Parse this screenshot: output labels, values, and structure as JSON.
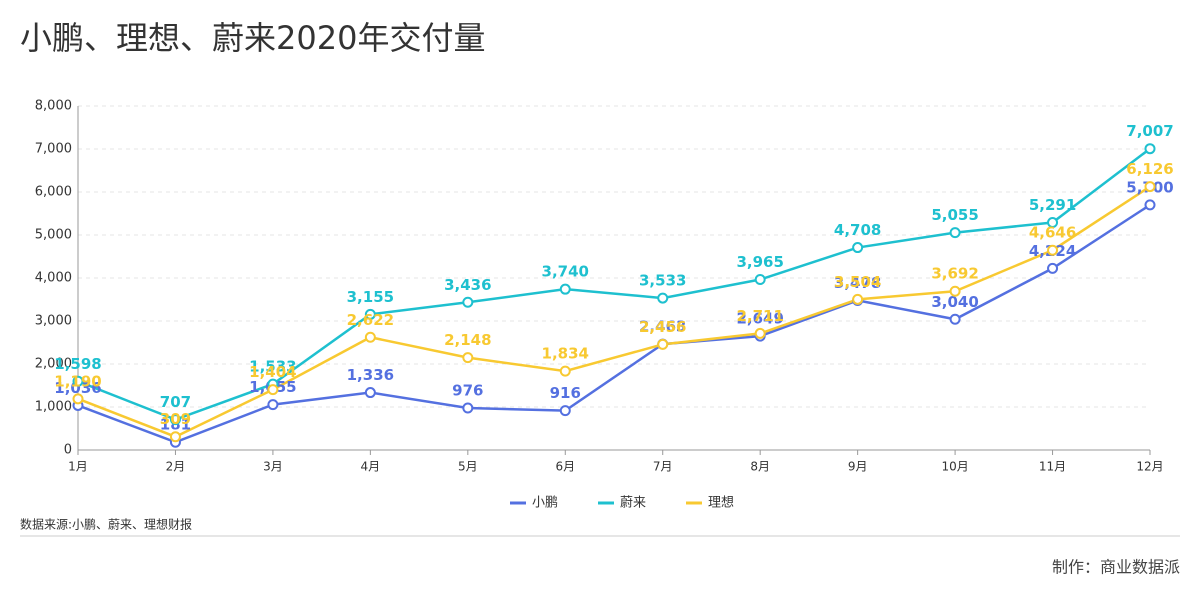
{
  "chart_data": {
    "type": "line",
    "title": "小鹏、理想、蔚来2020年交付量",
    "categories": [
      "1月",
      "2月",
      "3月",
      "4月",
      "5月",
      "6月",
      "7月",
      "8月",
      "9月",
      "10月",
      "11月",
      "12月"
    ],
    "series": [
      {
        "name": "小鹏",
        "color": "#5470e0",
        "values": [
          1036,
          181,
          1055,
          1336,
          976,
          916,
          2463,
          2649,
          3478,
          3040,
          4224,
          5700
        ],
        "value_labels": [
          "1,036",
          "181",
          "1,055",
          "1,336",
          "976",
          "916",
          "2,463",
          "2,649",
          "3,478",
          "3,040",
          "4,224",
          "5,700"
        ]
      },
      {
        "name": "蔚来",
        "color": "#1ec0cf",
        "values": [
          1598,
          707,
          1533,
          3155,
          3436,
          3740,
          3533,
          3965,
          4708,
          5055,
          5291,
          7007
        ],
        "value_labels": [
          "1,598",
          "707",
          "1,533",
          "3,155",
          "3,436",
          "3,740",
          "3,533",
          "3,965",
          "4,708",
          "5,055",
          "5,291",
          "7,007"
        ]
      },
      {
        "name": "理想",
        "color": "#f8c931",
        "values": [
          1190,
          309,
          1404,
          2622,
          2148,
          1834,
          2456,
          2711,
          3504,
          3692,
          4646,
          6126
        ],
        "value_labels": [
          "1,190",
          "309",
          "1,404",
          "2,622",
          "2,148",
          "1,834",
          "2,456",
          "2,711",
          "3,504",
          "3,692",
          "4,646",
          "6,126"
        ]
      }
    ],
    "ylim": [
      0,
      8000
    ],
    "yticks": [
      0,
      {
        "value": 1000,
        "label": "1,000"
      },
      {
        "value": 2000,
        "label": "2,000"
      },
      {
        "value": 3000,
        "label": "3,000"
      },
      {
        "value": 4000,
        "label": "4,000"
      },
      {
        "value": 5000,
        "label": "5,000"
      },
      {
        "value": 6000,
        "label": "6,000"
      },
      {
        "value": 7000,
        "label": "7,000"
      },
      {
        "value": 8000,
        "label": "8,000"
      }
    ],
    "grid": true,
    "legend": "bottom",
    "source": "数据来源:小鹏、蔚来、理想财报",
    "credit": "制作：商业数据派"
  }
}
